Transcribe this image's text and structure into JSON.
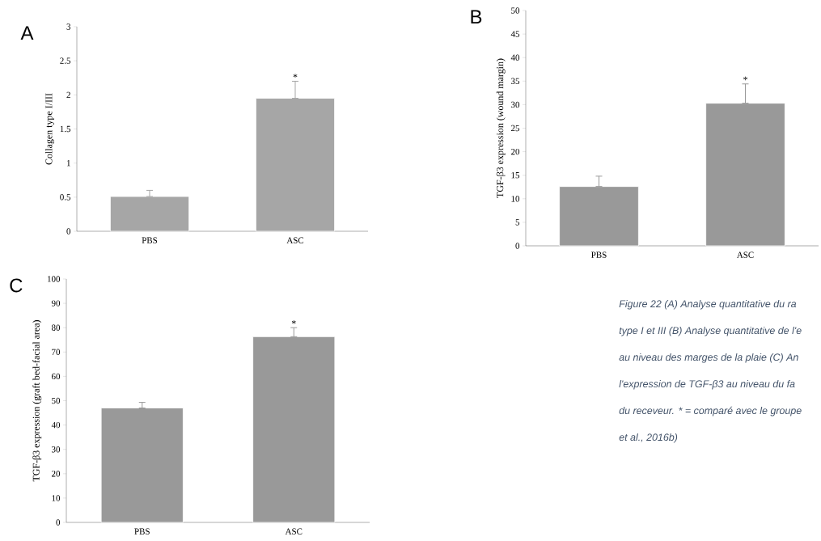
{
  "chart_data": [
    {
      "type": "bar",
      "title": "A",
      "ylabel": "Collagen type I/III",
      "categories": [
        "PBS",
        "ASC"
      ],
      "values": [
        0.51,
        1.95
      ],
      "errors": [
        [
          0.51,
          0.6
        ],
        [
          1.95,
          2.2
        ]
      ],
      "color": "#a6a6a6",
      "ylim": [
        0,
        3
      ],
      "yticks": [
        0,
        0.5,
        1,
        1.5,
        2,
        2.5,
        3
      ],
      "annotations": [
        {
          "text": "*",
          "x": "ASC",
          "y": 2.2
        }
      ]
    },
    {
      "type": "bar",
      "title": "B",
      "ylabel": "TGF-β3 expression (wound margin)",
      "categories": [
        "PBS",
        "ASC"
      ],
      "values": [
        12.6,
        30.3
      ],
      "errors": [
        [
          12.6,
          14.8
        ],
        [
          30.3,
          34.4
        ]
      ],
      "color": "#999999",
      "ylim": [
        0,
        50
      ],
      "yticks": [
        0,
        5,
        10,
        15,
        20,
        25,
        30,
        35,
        40,
        45,
        50
      ],
      "annotations": [
        {
          "text": "*",
          "x": "ASC",
          "y": 34.4
        }
      ]
    },
    {
      "type": "bar",
      "title": "C",
      "ylabel": "TGF-β3 expression (graft bed-facial area)",
      "categories": [
        "PBS",
        "ASC"
      ],
      "values": [
        47,
        76.3
      ],
      "errors": [
        [
          47,
          49.3
        ],
        [
          76.3,
          80
        ]
      ],
      "color": "#999999",
      "ylim": [
        0,
        100
      ],
      "yticks": [
        0,
        10,
        20,
        30,
        40,
        50,
        60,
        70,
        80,
        90,
        100
      ],
      "annotations": [
        {
          "text": "*",
          "x": "ASC",
          "y": 80
        }
      ]
    },
    {
      "type": "other",
      "annotations": [
        "Figure 22 (A) Analyse quantitative du ra",
        "type I et III (B) Analyse quantitative de l'e",
        "au niveau des marges de la plaie (C) An",
        "l'expression de TGF-β3 au niveau du fa",
        "du receveur. * = comparé avec le groupe",
        "et al., 2016b)"
      ]
    }
  ]
}
